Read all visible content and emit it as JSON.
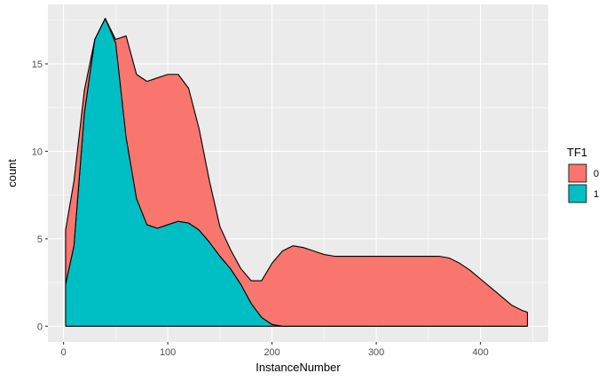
{
  "chart_data": {
    "type": "area",
    "xlabel": "InstanceNumber",
    "ylabel": "count",
    "xlim": [
      -15,
      465
    ],
    "ylim": [
      -0.9,
      18.4
    ],
    "x_ticks": [
      0,
      100,
      200,
      300,
      400
    ],
    "y_ticks": [
      0,
      5,
      10,
      15
    ],
    "x_tick_labels": [
      "0",
      "100",
      "200",
      "300",
      "400"
    ],
    "y_tick_labels": [
      "0",
      "5",
      "10",
      "15"
    ],
    "grid": true,
    "stacked": true,
    "legend": {
      "title": "TF1",
      "position": "right"
    },
    "series": [
      {
        "name": "0",
        "color": "#F8766D",
        "x": [
          2,
          10,
          20,
          30,
          40,
          50,
          60,
          70,
          80,
          90,
          100,
          110,
          120,
          130,
          140,
          150,
          160,
          170,
          180,
          190,
          200,
          210,
          220,
          230,
          240,
          250,
          260,
          270,
          280,
          290,
          300,
          310,
          320,
          330,
          340,
          350,
          360,
          370,
          380,
          390,
          400,
          410,
          420,
          430,
          440,
          445
        ],
        "values": [
          3.1,
          3.7,
          1.3,
          0,
          0,
          0.2,
          5.8,
          7.1,
          8.2,
          8.6,
          8.6,
          8.4,
          7.7,
          5.8,
          3.5,
          1.7,
          1.1,
          0.9,
          1.3,
          2.1,
          3.5,
          4.3,
          4.6,
          4.5,
          4.3,
          4.1,
          4,
          4,
          4,
          4,
          4,
          4,
          4,
          4,
          4,
          4,
          4,
          3.9,
          3.6,
          3.2,
          2.7,
          2.2,
          1.7,
          1.2,
          0.9,
          0.8
        ]
      },
      {
        "name": "1",
        "color": "#00BFC4",
        "x": [
          2,
          10,
          20,
          30,
          40,
          50,
          60,
          70,
          80,
          90,
          100,
          110,
          120,
          130,
          140,
          150,
          160,
          170,
          180,
          190,
          200,
          210,
          220,
          230,
          240,
          250,
          260,
          270,
          280,
          290,
          300,
          310,
          320,
          330,
          340,
          350,
          360,
          370,
          380,
          390,
          400,
          410,
          420,
          430,
          440,
          445
        ],
        "values": [
          2.4,
          4.6,
          12.2,
          16.4,
          17.6,
          16.2,
          10.8,
          7.3,
          5.8,
          5.6,
          5.8,
          6,
          5.9,
          5.5,
          4.8,
          4,
          3.3,
          2.4,
          1.3,
          0.5,
          0.1,
          0,
          0,
          0,
          0,
          0,
          0,
          0,
          0,
          0,
          0,
          0,
          0,
          0,
          0,
          0,
          0,
          0,
          0,
          0,
          0,
          0,
          0,
          0,
          0,
          0
        ]
      }
    ]
  }
}
